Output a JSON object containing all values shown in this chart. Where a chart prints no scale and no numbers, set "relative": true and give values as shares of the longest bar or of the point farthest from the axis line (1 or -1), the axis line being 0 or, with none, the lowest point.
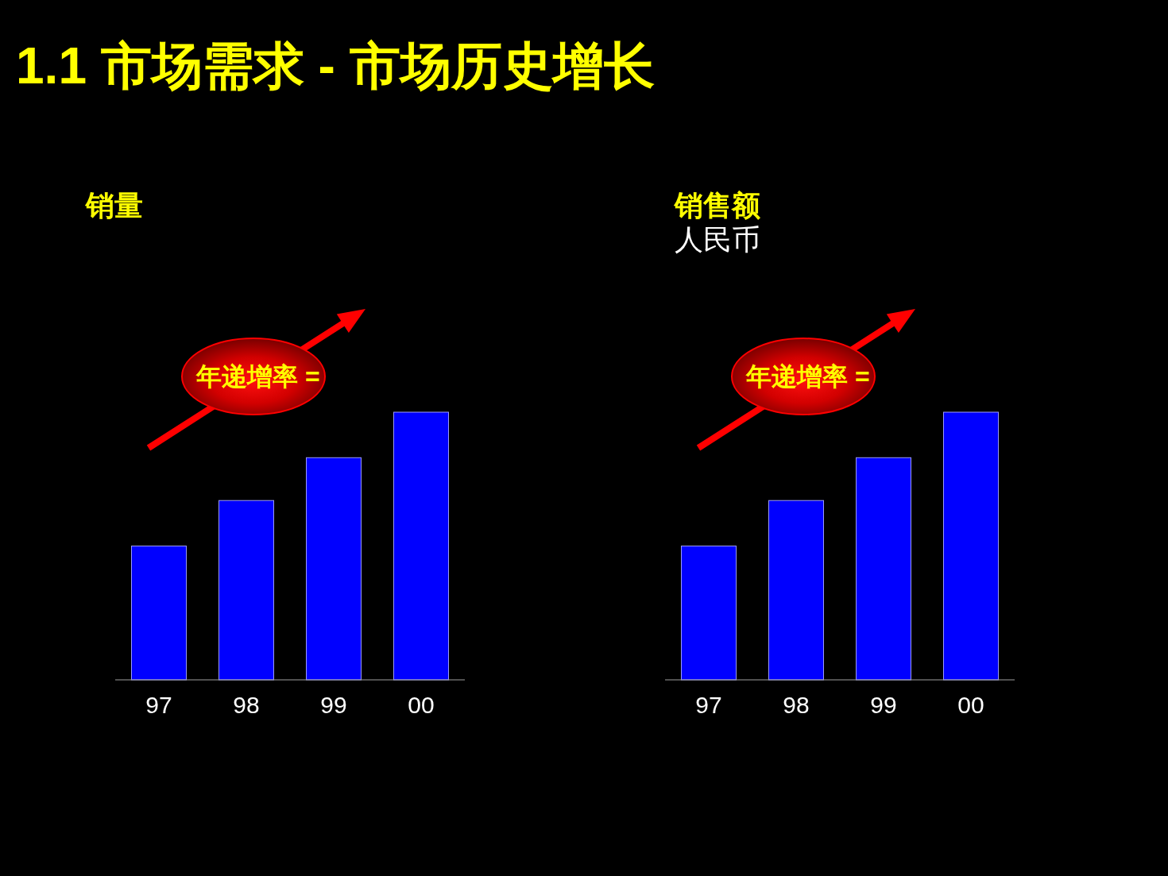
{
  "chart_data": [
    {
      "type": "other",
      "title": "1.1 市场需求 - 市场历史增长"
    },
    {
      "type": "bar",
      "title": "销量",
      "categories": [
        "97",
        "98",
        "99",
        "00"
      ],
      "values": [
        0.5,
        0.67,
        0.83,
        1
      ],
      "color": "#0000ff",
      "relative": true,
      "annotations": [
        "年递增率 ="
      ]
    },
    {
      "type": "bar",
      "title": "销售额",
      "subtitle": "人民币",
      "categories": [
        "97",
        "98",
        "99",
        "00"
      ],
      "values": [
        0.5,
        0.67,
        0.83,
        1
      ],
      "color": "#0000ff",
      "relative": true,
      "annotations": [
        "年递增率 ="
      ]
    }
  ]
}
